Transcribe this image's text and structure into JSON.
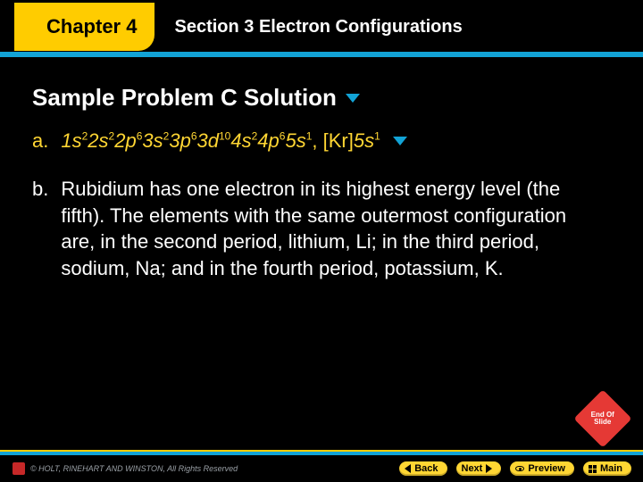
{
  "header": {
    "chapter_label": "Chapter 4",
    "section_label": "Section 3  Electron Configurations"
  },
  "colors": {
    "accent_yellow": "#ffcc00",
    "accent_cyan": "#12a3d6",
    "text_white": "#ffffff",
    "text_yellow": "#ffd633",
    "bg": "#000000",
    "stop_red": "#e53935"
  },
  "content": {
    "heading": "Sample Problem C Solution",
    "a": {
      "label": "a.",
      "config_parts": [
        {
          "orb": "1s",
          "sup": "2"
        },
        {
          "orb": "2s",
          "sup": "2"
        },
        {
          "orb": "2p",
          "sup": "6"
        },
        {
          "orb": "3s",
          "sup": "2"
        },
        {
          "orb": "3p",
          "sup": "6"
        },
        {
          "orb": "3d",
          "sup": "10"
        },
        {
          "orb": "4s",
          "sup": "2"
        },
        {
          "orb": "4p",
          "sup": "6"
        },
        {
          "orb": "5s",
          "sup": "1"
        }
      ],
      "noble_prefix": ", [Kr]",
      "noble_orb": "5s",
      "noble_sup": "1"
    },
    "b": {
      "label": "b.",
      "text": "Rubidium has one electron in its highest energy level (the fifth). The elements with the same outermost configuration are, in the second period, lithium, Li; in the third period, sodium, Na; and in the fourth period, potassium, K."
    }
  },
  "footer": {
    "copyright": "© HOLT, RINEHART AND WINSTON, All Rights Reserved",
    "nav": {
      "back": "Back",
      "next": "Next",
      "preview": "Preview",
      "main": "Main"
    },
    "end_of_slide": "End Of Slide"
  }
}
